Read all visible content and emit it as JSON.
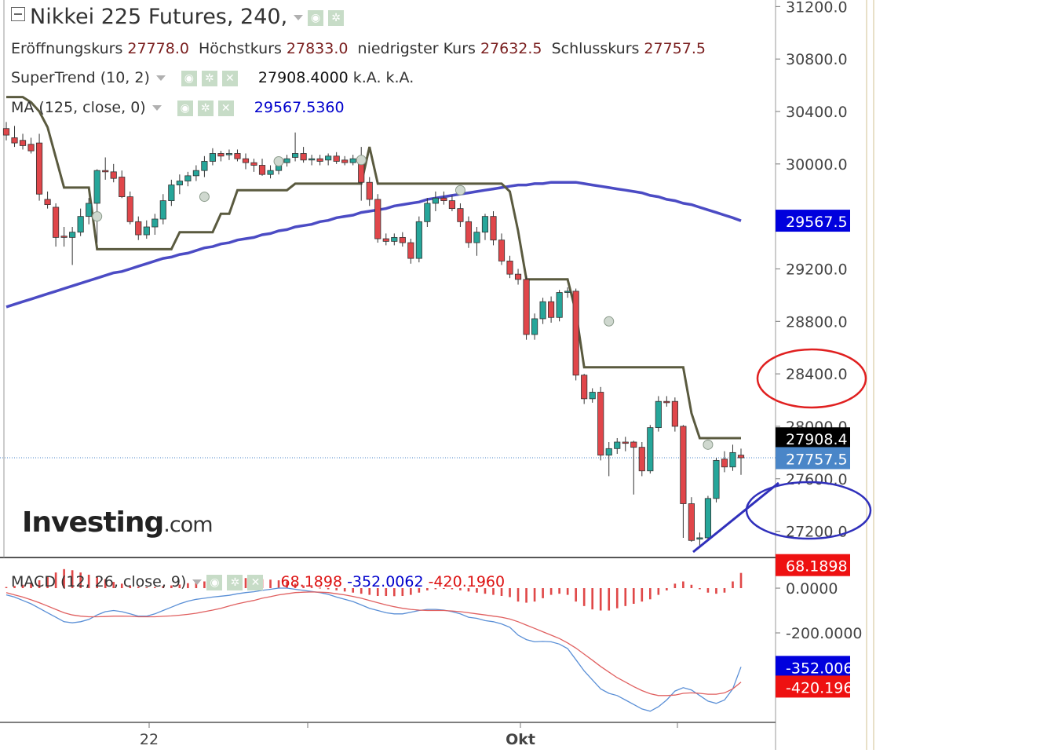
{
  "header": {
    "title": "Nikkei 225 Futures, 240,",
    "ohlc": [
      {
        "label": "Eröffnungskurs",
        "value": "27778.0"
      },
      {
        "label": "Höchstkurs",
        "value": "27833.0"
      },
      {
        "label": "niedrigster Kurs",
        "value": "27632.5"
      },
      {
        "label": "Schlusskurs",
        "value": "27757.5"
      }
    ]
  },
  "indicators": {
    "supertrend": {
      "label": "SuperTrend (10, 2)",
      "value": "27908.4000",
      "extra1": "k.A.",
      "extra2": "k.A."
    },
    "ma": {
      "label": "MA (125, close, 0)",
      "value": "29567.5360"
    },
    "macd": {
      "label": "MACD (12, 26, close, 9)",
      "hist": "68.1898",
      "macd": "-352.0062",
      "signal": "-420.1960"
    }
  },
  "badges": {
    "ma": "29567.5",
    "supertrend": "27908.4",
    "last": "27757.5",
    "macd_hist": "68.1898",
    "macd_line": "-352.0062",
    "macd_signal": "-420.1960"
  },
  "logo": {
    "brand": "Investing",
    "suffix": ".com"
  },
  "colors": {
    "up": "#26a69a",
    "down": "#e0464a",
    "ma": "#4b4bc4",
    "supertrend": "#5a5a3f",
    "macd_line": "#5a8fd6",
    "signal_line": "#e06060",
    "badge_ma": "#0000dd",
    "badge_st": "#000000",
    "badge_last": "#4a86c8",
    "badge_hist": "#ee1111",
    "circle_red": "#e02020",
    "circle_blue": "#3030bb"
  },
  "chart_data": {
    "type": "candlestick",
    "price_axis": {
      "ticks": [
        "31200.0",
        "30800.0",
        "30400.0",
        "30000.0",
        "29200.0",
        "28800.0",
        "28400.0",
        "28000.0",
        "27600.0",
        "27200.0"
      ],
      "range": [
        27000,
        31250
      ]
    },
    "macd_axis": {
      "ticks": [
        "0.0000",
        "-200.0000"
      ],
      "range": [
        -600,
        130
      ]
    },
    "time_axis": {
      "labels": [
        "22",
        "Okt"
      ]
    },
    "candles": [
      {
        "o": 30270,
        "h": 30320,
        "l": 30180,
        "c": 30220
      },
      {
        "o": 30200,
        "h": 30290,
        "l": 30130,
        "c": 30160
      },
      {
        "o": 30180,
        "h": 30230,
        "l": 30110,
        "c": 30140
      },
      {
        "o": 30150,
        "h": 30200,
        "l": 30080,
        "c": 30100
      },
      {
        "o": 30160,
        "h": 30230,
        "l": 29720,
        "c": 29770
      },
      {
        "o": 29730,
        "h": 29790,
        "l": 29660,
        "c": 29690
      },
      {
        "o": 29670,
        "h": 29700,
        "l": 29370,
        "c": 29440
      },
      {
        "o": 29450,
        "h": 29520,
        "l": 29370,
        "c": 29440
      },
      {
        "o": 29440,
        "h": 29520,
        "l": 29230,
        "c": 29480
      },
      {
        "o": 29480,
        "h": 29660,
        "l": 29450,
        "c": 29600
      },
      {
        "o": 29600,
        "h": 29740,
        "l": 29540,
        "c": 29700
      },
      {
        "o": 29700,
        "h": 29960,
        "l": 29400,
        "c": 29950
      },
      {
        "o": 29950,
        "h": 30050,
        "l": 29880,
        "c": 29940
      },
      {
        "o": 29940,
        "h": 30000,
        "l": 29860,
        "c": 29890
      },
      {
        "o": 29900,
        "h": 29950,
        "l": 29740,
        "c": 29750
      },
      {
        "o": 29750,
        "h": 29790,
        "l": 29540,
        "c": 29560
      },
      {
        "o": 29560,
        "h": 29600,
        "l": 29420,
        "c": 29460
      },
      {
        "o": 29460,
        "h": 29570,
        "l": 29430,
        "c": 29520
      },
      {
        "o": 29520,
        "h": 29620,
        "l": 29460,
        "c": 29580
      },
      {
        "o": 29580,
        "h": 29770,
        "l": 29540,
        "c": 29720
      },
      {
        "o": 29720,
        "h": 29880,
        "l": 29680,
        "c": 29840
      },
      {
        "o": 29840,
        "h": 29920,
        "l": 29770,
        "c": 29870
      },
      {
        "o": 29870,
        "h": 29940,
        "l": 29830,
        "c": 29910
      },
      {
        "o": 29910,
        "h": 29990,
        "l": 29870,
        "c": 29950
      },
      {
        "o": 29950,
        "h": 30060,
        "l": 29900,
        "c": 30020
      },
      {
        "o": 30020,
        "h": 30120,
        "l": 29990,
        "c": 30080
      },
      {
        "o": 30080,
        "h": 30100,
        "l": 30020,
        "c": 30060
      },
      {
        "o": 30070,
        "h": 30110,
        "l": 30030,
        "c": 30080
      },
      {
        "o": 30080,
        "h": 30110,
        "l": 30020,
        "c": 30040
      },
      {
        "o": 30040,
        "h": 30080,
        "l": 29960,
        "c": 30010
      },
      {
        "o": 30010,
        "h": 30040,
        "l": 29940,
        "c": 29990
      },
      {
        "o": 29990,
        "h": 30040,
        "l": 29910,
        "c": 29920
      },
      {
        "o": 29920,
        "h": 29990,
        "l": 29890,
        "c": 29950
      },
      {
        "o": 29950,
        "h": 30030,
        "l": 29920,
        "c": 30010
      },
      {
        "o": 30010,
        "h": 30070,
        "l": 29980,
        "c": 30040
      },
      {
        "o": 30050,
        "h": 30240,
        "l": 30020,
        "c": 30080
      },
      {
        "o": 30080,
        "h": 30130,
        "l": 30010,
        "c": 30030
      },
      {
        "o": 30030,
        "h": 30070,
        "l": 29990,
        "c": 30040
      },
      {
        "o": 30040,
        "h": 30070,
        "l": 29990,
        "c": 30020
      },
      {
        "o": 30030,
        "h": 30080,
        "l": 29990,
        "c": 30060
      },
      {
        "o": 30060,
        "h": 30090,
        "l": 30000,
        "c": 30020
      },
      {
        "o": 30030,
        "h": 30060,
        "l": 29990,
        "c": 30010
      },
      {
        "o": 30010,
        "h": 30070,
        "l": 29990,
        "c": 30040
      },
      {
        "o": 30050,
        "h": 30130,
        "l": 29720,
        "c": 29860
      },
      {
        "o": 29860,
        "h": 29900,
        "l": 29680,
        "c": 29730
      },
      {
        "o": 29730,
        "h": 29770,
        "l": 29400,
        "c": 29430
      },
      {
        "o": 29430,
        "h": 29470,
        "l": 29380,
        "c": 29410
      },
      {
        "o": 29410,
        "h": 29470,
        "l": 29380,
        "c": 29440
      },
      {
        "o": 29440,
        "h": 29480,
        "l": 29370,
        "c": 29400
      },
      {
        "o": 29400,
        "h": 29430,
        "l": 29240,
        "c": 29280
      },
      {
        "o": 29280,
        "h": 29600,
        "l": 29250,
        "c": 29560
      },
      {
        "o": 29560,
        "h": 29740,
        "l": 29520,
        "c": 29700
      },
      {
        "o": 29700,
        "h": 29790,
        "l": 29640,
        "c": 29740
      },
      {
        "o": 29740,
        "h": 29790,
        "l": 29690,
        "c": 29720
      },
      {
        "o": 29720,
        "h": 29760,
        "l": 29640,
        "c": 29660
      },
      {
        "o": 29660,
        "h": 29700,
        "l": 29520,
        "c": 29560
      },
      {
        "o": 29560,
        "h": 29600,
        "l": 29360,
        "c": 29400
      },
      {
        "o": 29400,
        "h": 29520,
        "l": 29300,
        "c": 29480
      },
      {
        "o": 29480,
        "h": 29620,
        "l": 29420,
        "c": 29600
      },
      {
        "o": 29600,
        "h": 29640,
        "l": 29380,
        "c": 29420
      },
      {
        "o": 29420,
        "h": 29470,
        "l": 29230,
        "c": 29260
      },
      {
        "o": 29260,
        "h": 29300,
        "l": 29130,
        "c": 29160
      },
      {
        "o": 29160,
        "h": 29200,
        "l": 29080,
        "c": 29120
      },
      {
        "o": 29120,
        "h": 29150,
        "l": 28660,
        "c": 28700
      },
      {
        "o": 28700,
        "h": 28860,
        "l": 28660,
        "c": 28820
      },
      {
        "o": 28820,
        "h": 28980,
        "l": 28780,
        "c": 28950
      },
      {
        "o": 28950,
        "h": 28990,
        "l": 28790,
        "c": 28830
      },
      {
        "o": 28830,
        "h": 29040,
        "l": 28800,
        "c": 29020
      },
      {
        "o": 29020,
        "h": 29060,
        "l": 28980,
        "c": 29030
      },
      {
        "o": 29030,
        "h": 29050,
        "l": 28350,
        "c": 28390
      },
      {
        "o": 28390,
        "h": 28400,
        "l": 28170,
        "c": 28210
      },
      {
        "o": 28210,
        "h": 28290,
        "l": 28180,
        "c": 28260
      },
      {
        "o": 28260,
        "h": 28300,
        "l": 27740,
        "c": 27780
      },
      {
        "o": 27780,
        "h": 27880,
        "l": 27620,
        "c": 27830
      },
      {
        "o": 27830,
        "h": 27910,
        "l": 27790,
        "c": 27880
      },
      {
        "o": 27880,
        "h": 27920,
        "l": 27810,
        "c": 27870
      },
      {
        "o": 27880,
        "h": 27890,
        "l": 27480,
        "c": 27840
      },
      {
        "o": 27840,
        "h": 27880,
        "l": 27620,
        "c": 27660
      },
      {
        "o": 27660,
        "h": 28010,
        "l": 27640,
        "c": 27990
      },
      {
        "o": 27990,
        "h": 28230,
        "l": 27960,
        "c": 28190
      },
      {
        "o": 28190,
        "h": 28230,
        "l": 28150,
        "c": 28180
      },
      {
        "o": 28190,
        "h": 28220,
        "l": 27960,
        "c": 28000
      },
      {
        "o": 28000,
        "h": 28010,
        "l": 27150,
        "c": 27410
      },
      {
        "o": 27410,
        "h": 27460,
        "l": 27120,
        "c": 27130
      },
      {
        "o": 27140,
        "h": 27190,
        "l": 27080,
        "c": 27150
      },
      {
        "o": 27150,
        "h": 27470,
        "l": 27130,
        "c": 27450
      },
      {
        "o": 27450,
        "h": 27760,
        "l": 27420,
        "c": 27740
      },
      {
        "o": 27750,
        "h": 27810,
        "l": 27650,
        "c": 27690
      },
      {
        "o": 27690,
        "h": 27860,
        "l": 27660,
        "c": 27800
      },
      {
        "o": 27780,
        "h": 27830,
        "l": 27630,
        "c": 27760
      }
    ],
    "supertrend": [
      30510,
      30510,
      30510,
      30470,
      30400,
      30280,
      30050,
      29820,
      29820,
      29820,
      29820,
      29350,
      29350,
      29350,
      29350,
      29350,
      29350,
      29350,
      29350,
      29350,
      29350,
      29480,
      29480,
      29480,
      29480,
      29480,
      29620,
      29620,
      29800,
      29800,
      29800,
      29800,
      29800,
      29800,
      29800,
      29850,
      29850,
      29850,
      29850,
      29850,
      29850,
      29850,
      29850,
      29850,
      30130,
      29850,
      29850,
      29850,
      29850,
      29850,
      29850,
      29850,
      29850,
      29850,
      29850,
      29850,
      29850,
      29850,
      29850,
      29850,
      29850,
      29790,
      29490,
      29120,
      29120,
      29120,
      29120,
      29120,
      29120,
      28870,
      28450,
      28450,
      28450,
      28450,
      28450,
      28450,
      28450,
      28450,
      28450,
      28450,
      28450,
      28450,
      28450,
      28100,
      27910,
      27910,
      27910,
      27910,
      27910,
      27910
    ],
    "ma": [
      28910,
      28930,
      28950,
      28970,
      28990,
      29010,
      29030,
      29050,
      29070,
      29090,
      29110,
      29130,
      29150,
      29170,
      29180,
      29200,
      29220,
      29240,
      29260,
      29280,
      29290,
      29310,
      29320,
      29340,
      29360,
      29370,
      29390,
      29400,
      29420,
      29430,
      29440,
      29460,
      29470,
      29490,
      29500,
      29520,
      29530,
      29540,
      29560,
      29570,
      29590,
      29600,
      29610,
      29630,
      29640,
      29650,
      29660,
      29680,
      29690,
      29700,
      29710,
      29730,
      29740,
      29750,
      29760,
      29770,
      29780,
      29790,
      29800,
      29810,
      29820,
      29830,
      29840,
      29840,
      29850,
      29850,
      29860,
      29860,
      29860,
      29860,
      29850,
      29840,
      29830,
      29820,
      29810,
      29800,
      29790,
      29780,
      29760,
      29750,
      29730,
      29720,
      29700,
      29690,
      29670,
      29650,
      29630,
      29610,
      29590,
      29567
    ],
    "macd": [
      -30,
      -40,
      -55,
      -70,
      -90,
      -110,
      -130,
      -150,
      -155,
      -150,
      -140,
      -120,
      -105,
      -100,
      -105,
      -115,
      -125,
      -125,
      -115,
      -100,
      -85,
      -70,
      -58,
      -50,
      -45,
      -40,
      -36,
      -32,
      -25,
      -20,
      -16,
      -10,
      -5,
      0,
      0,
      -5,
      -10,
      -15,
      -20,
      -28,
      -40,
      -50,
      -60,
      -75,
      -90,
      -100,
      -110,
      -115,
      -115,
      -108,
      -100,
      -95,
      -95,
      -98,
      -105,
      -115,
      -130,
      -135,
      -145,
      -150,
      -160,
      -175,
      -210,
      -230,
      -240,
      -238,
      -240,
      -250,
      -270,
      -320,
      -370,
      -410,
      -450,
      -470,
      -480,
      -500,
      -520,
      -540,
      -550,
      -530,
      -500,
      -460,
      -445,
      -455,
      -480,
      -505,
      -515,
      -500,
      -450,
      -352
    ],
    "signal": [
      -20,
      -30,
      -40,
      -52,
      -65,
      -80,
      -95,
      -110,
      -120,
      -125,
      -128,
      -128,
      -127,
      -125,
      -125,
      -126,
      -128,
      -128,
      -128,
      -126,
      -124,
      -121,
      -117,
      -112,
      -105,
      -98,
      -90,
      -80,
      -70,
      -62,
      -55,
      -45,
      -38,
      -30,
      -25,
      -20,
      -18,
      -17,
      -18,
      -20,
      -25,
      -30,
      -37,
      -45,
      -55,
      -65,
      -75,
      -83,
      -90,
      -95,
      -98,
      -100,
      -100,
      -100,
      -102,
      -105,
      -110,
      -115,
      -120,
      -125,
      -130,
      -138,
      -150,
      -165,
      -180,
      -195,
      -210,
      -225,
      -245,
      -268,
      -295,
      -322,
      -350,
      -375,
      -400,
      -420,
      -440,
      -458,
      -472,
      -480,
      -480,
      -478,
      -470,
      -468,
      -470,
      -474,
      -474,
      -468,
      -450,
      -420
    ],
    "histogram": [
      5,
      10,
      15,
      20,
      35,
      50,
      70,
      85,
      80,
      70,
      60,
      50,
      40,
      28,
      20,
      12,
      6,
      4,
      5,
      10,
      12,
      16,
      22,
      30,
      30,
      32,
      35,
      40,
      45,
      45,
      45,
      40,
      38,
      35,
      30,
      20,
      12,
      6,
      2,
      -5,
      -10,
      -15,
      -20,
      -25,
      -30,
      -35,
      -35,
      -36,
      -35,
      -30,
      -20,
      -10,
      -5,
      0,
      -5,
      -10,
      -15,
      -20,
      -25,
      -30,
      -35,
      -40,
      -60,
      -65,
      -60,
      -45,
      -30,
      -25,
      -30,
      -60,
      -80,
      -95,
      -100,
      -100,
      -90,
      -80,
      -70,
      -60,
      -50,
      -30,
      -10,
      20,
      30,
      15,
      -5,
      -20,
      -25,
      -20,
      30,
      68
    ]
  }
}
